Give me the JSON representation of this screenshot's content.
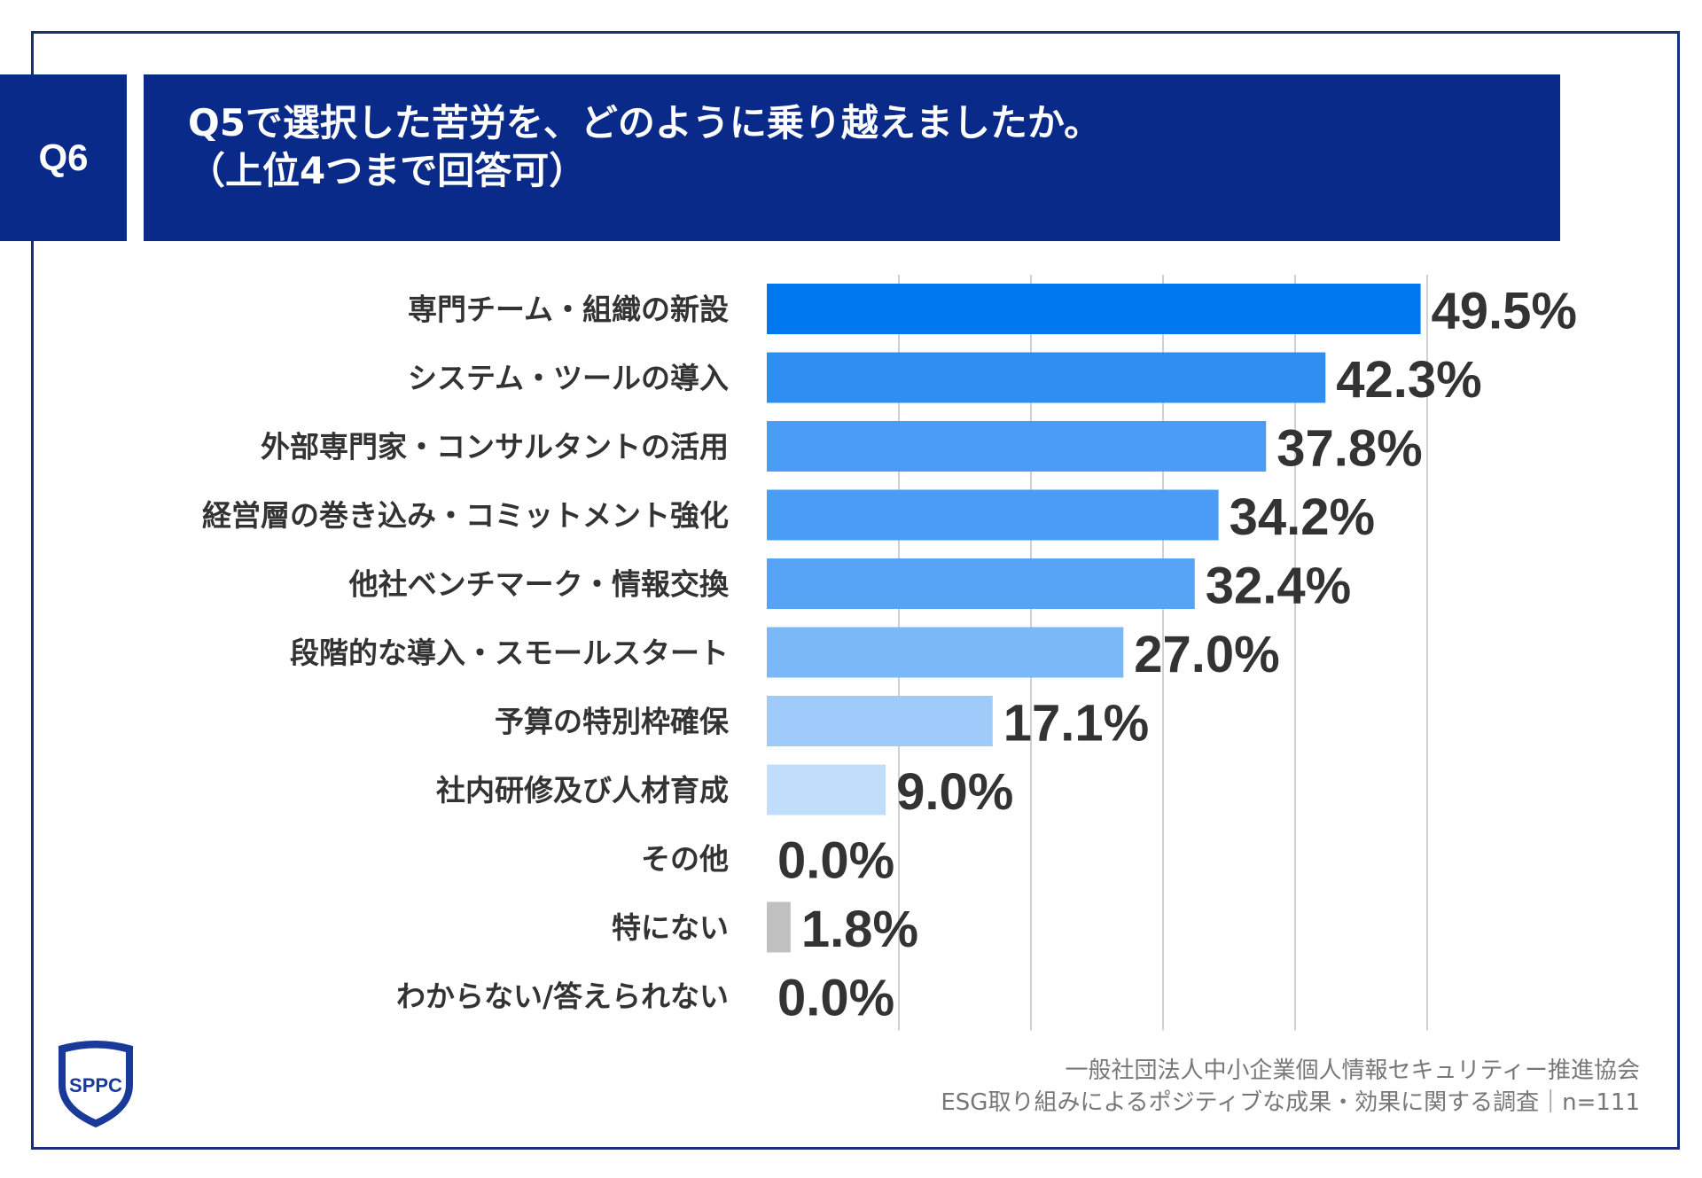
{
  "question": {
    "number": "Q6",
    "title_line1": "Q5で選択した苦労を、どのように乗り越えましたか。",
    "title_line2": "（上位4つまで回答可）"
  },
  "colors": {
    "header_bg": "#0a2a8a",
    "frame": "#1a2f7a",
    "grid": "#d0d0d0",
    "label_text": "#333333",
    "value_text": "#333333"
  },
  "chart_data": {
    "type": "bar",
    "orientation": "horizontal",
    "categories": [
      "専門チーム・組織の新設",
      "システム・ツールの導入",
      "外部専門家・コンサルタントの活用",
      "経営層の巻き込み・コミットメント強化",
      "他社ベンチマーク・情報交換",
      "段階的な導入・スモールスタート",
      "予算の特別枠確保",
      "社内研修及び人材育成",
      "その他",
      "特にない",
      "わからない/答えられない"
    ],
    "values": [
      49.5,
      42.3,
      37.8,
      34.2,
      32.4,
      27.0,
      17.1,
      9.0,
      0.0,
      1.8,
      0.0
    ],
    "value_labels": [
      "49.5%",
      "42.3%",
      "37.8%",
      "34.2%",
      "32.4%",
      "27.0%",
      "17.1%",
      "9.0%",
      "0.0%",
      "1.8%",
      "0.0%"
    ],
    "bar_colors": [
      "#0078f0",
      "#2f8ef2",
      "#4a9cf4",
      "#4a9cf4",
      "#57a3f5",
      "#7ab8f8",
      "#9fcbfa",
      "#c0defc",
      "#c0defc",
      "#c0c0c0",
      "#c0c0c0"
    ],
    "xlim": [
      0,
      50
    ],
    "grid": true
  },
  "footer": {
    "line1": "一般社団法人中小企業個人情報セキュリティー推進協会",
    "line2": "ESG取り組みによるポジティブな成果・効果に関する調査｜n=111"
  },
  "logo": {
    "icon": "sppc-shield-logo",
    "text": "SPPC"
  }
}
